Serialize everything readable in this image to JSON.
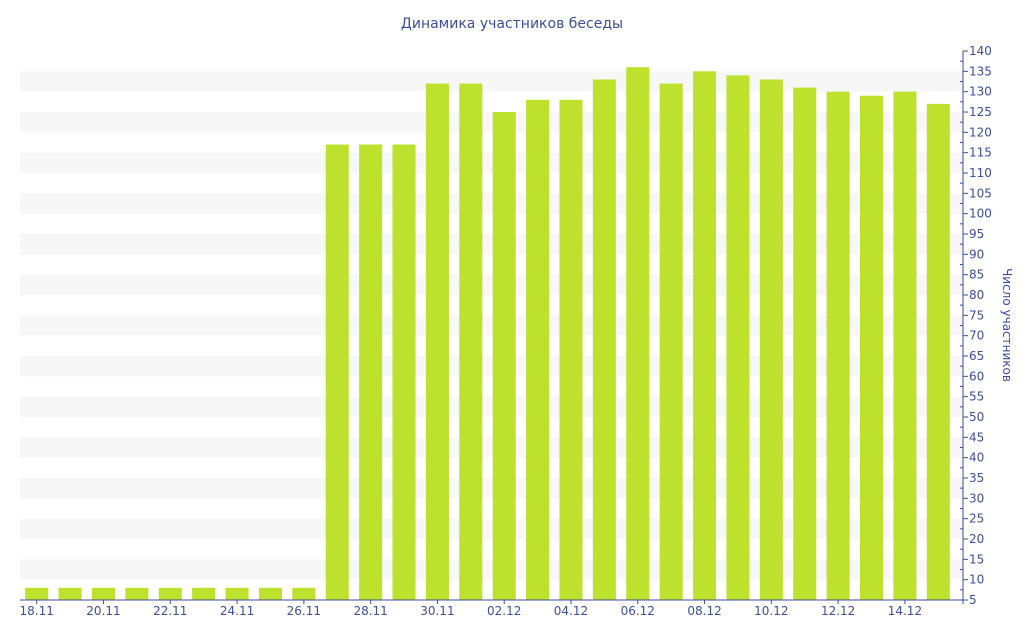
{
  "chart_data": {
    "type": "bar",
    "title": "Динамика участников беседы",
    "xlabel": "",
    "ylabel": "Число участников",
    "ylim": [
      5,
      140
    ],
    "ytick_step": 5,
    "grid": "alternating horizontal bands",
    "categories": [
      "18.11",
      "19.11",
      "20.11",
      "21.11",
      "22.11",
      "23.11",
      "24.11",
      "25.11",
      "26.11",
      "27.11",
      "28.11",
      "29.11",
      "30.11",
      "01.12",
      "02.12",
      "03.12",
      "04.12",
      "05.12",
      "06.12",
      "07.12",
      "08.12",
      "09.12",
      "10.12",
      "11.12",
      "12.12",
      "13.12",
      "14.12",
      "15.12"
    ],
    "xtick_labels": [
      "18.11",
      "20.11",
      "22.11",
      "24.11",
      "26.11",
      "28.11",
      "30.11",
      "02.12",
      "04.12",
      "06.12",
      "08.12",
      "10.12",
      "12.12",
      "14.12"
    ],
    "values": [
      8,
      8,
      8,
      8,
      8,
      8,
      8,
      8,
      8,
      117,
      117,
      117,
      132,
      132,
      125,
      128,
      128,
      133,
      136,
      132,
      135,
      134,
      133,
      131,
      130,
      129,
      130,
      127
    ],
    "bar_color": "#bde12d",
    "axis_color": "#3c4e9a"
  }
}
